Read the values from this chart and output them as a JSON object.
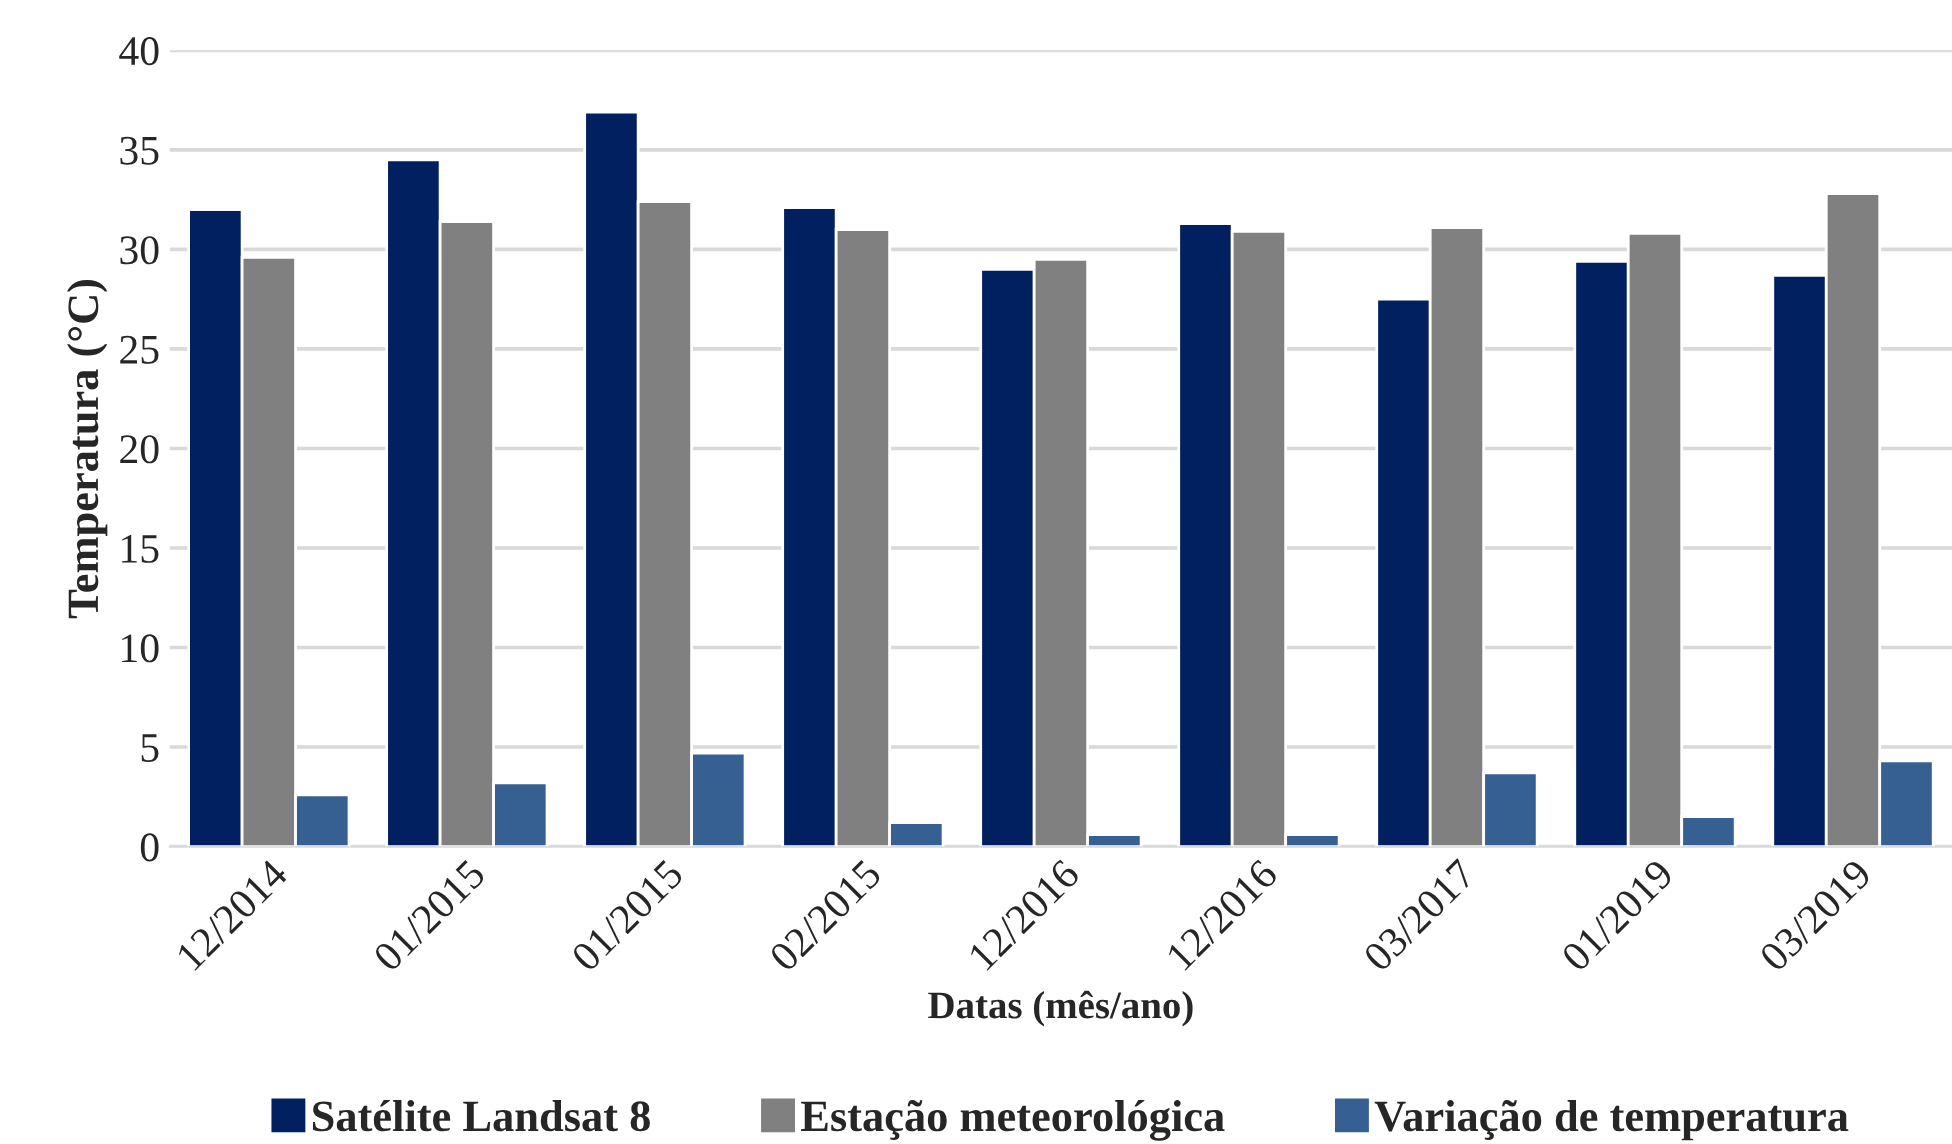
{
  "chart_data": {
    "type": "bar",
    "xlabel": "Datas (mês/ano)",
    "ylabel": "Temperatura (°C)",
    "categories": [
      "12/2014",
      "01/2015",
      "01/2015",
      "02/2015",
      "12/2016",
      "12/2016",
      "03/2017",
      "01/2019",
      "03/2019"
    ],
    "series": [
      {
        "name": "Satélite Landsat 8",
        "color": "#002060",
        "values": [
          32.0,
          34.5,
          36.9,
          32.1,
          29.0,
          31.3,
          27.5,
          29.4,
          28.7
        ]
      },
      {
        "name": "Estação meteorológica",
        "color": "#808080",
        "values": [
          29.6,
          31.4,
          32.4,
          31.0,
          29.5,
          30.9,
          31.1,
          30.8,
          32.8
        ]
      },
      {
        "name": "Variação de temperatura",
        "color": "#376092",
        "values": [
          2.6,
          3.2,
          4.7,
          1.2,
          0.6,
          0.6,
          3.7,
          1.5,
          4.3
        ]
      }
    ],
    "ylim": [
      0,
      40
    ],
    "yticks": [
      0,
      5,
      10,
      15,
      20,
      25,
      30,
      35,
      40
    ],
    "grid": "y",
    "legend": "bottom"
  }
}
